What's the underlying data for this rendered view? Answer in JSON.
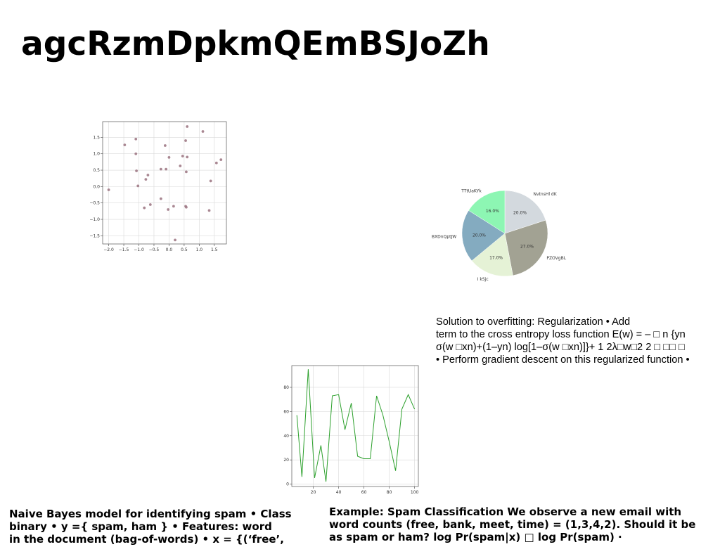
{
  "slide": {
    "title": "agcRzmDpkmQEmBSJoZh"
  },
  "chart_data": [
    {
      "type": "scatter",
      "title": "",
      "xlabel": "",
      "ylabel": "",
      "xlim": [
        -2.2,
        1.9
      ],
      "ylim": [
        -1.75,
        1.98
      ],
      "xticks": [
        "−2.0",
        "−1.5",
        "−1.0",
        "−0.5",
        "0.0",
        "0.5",
        "1.0",
        "1.5"
      ],
      "xtick_values": [
        -2.0,
        -1.5,
        -1.0,
        -0.5,
        0.0,
        0.5,
        1.0,
        1.5
      ],
      "yticks": [
        "−1.5",
        "−1.0",
        "−0.5",
        "0.0",
        "0.5",
        "1.0",
        "1.5"
      ],
      "ytick_values": [
        -1.5,
        -1.0,
        -0.5,
        0.0,
        0.5,
        1.0,
        1.5
      ],
      "grid": true,
      "point_color": "#a07a86",
      "points": [
        [
          0.6,
          1.83
        ],
        [
          1.12,
          1.68
        ],
        [
          -1.1,
          1.45
        ],
        [
          0.55,
          1.4
        ],
        [
          -1.47,
          1.27
        ],
        [
          -0.13,
          1.25
        ],
        [
          -1.1,
          1.0
        ],
        [
          0.45,
          0.93
        ],
        [
          0.6,
          0.9
        ],
        [
          0.0,
          0.89
        ],
        [
          1.72,
          0.82
        ],
        [
          1.57,
          0.72
        ],
        [
          0.37,
          0.63
        ],
        [
          -0.27,
          0.53
        ],
        [
          -0.1,
          0.53
        ],
        [
          -1.08,
          0.48
        ],
        [
          0.57,
          0.45
        ],
        [
          -0.7,
          0.35
        ],
        [
          -0.77,
          0.22
        ],
        [
          1.38,
          0.17
        ],
        [
          -1.03,
          0.02
        ],
        [
          -2.0,
          -0.1
        ],
        [
          -0.27,
          -0.37
        ],
        [
          -0.62,
          -0.55
        ],
        [
          0.15,
          -0.6
        ],
        [
          0.55,
          -0.6
        ],
        [
          0.57,
          -0.63
        ],
        [
          -0.82,
          -0.65
        ],
        [
          -0.03,
          -0.7
        ],
        [
          1.33,
          -0.73
        ],
        [
          0.2,
          -1.63
        ]
      ]
    },
    {
      "type": "pie",
      "title": "",
      "slices": [
        {
          "label": "NvtnsHl dK",
          "value": 20.0,
          "pct": "20.0%",
          "color": "#d3d9de"
        },
        {
          "label": "PZOVgBL",
          "value": 27.0,
          "pct": "27.0%",
          "color": "#a2a293"
        },
        {
          "label": "I kSjc",
          "value": 17.0,
          "pct": "17.0%",
          "color": "#e5f2d6"
        },
        {
          "label": "BXDnQptJW",
          "value": 20.0,
          "pct": "20.0%",
          "color": "#84abc0"
        },
        {
          "label": "TTtUaKYk",
          "value": 16.0,
          "pct": "16.0%",
          "color": "#8df6b3"
        }
      ]
    },
    {
      "type": "line",
      "title": "",
      "xlabel": "",
      "ylabel": "",
      "xlim": [
        3,
        103
      ],
      "ylim": [
        -2,
        98
      ],
      "xticks": [
        "20",
        "40",
        "60",
        "80",
        "100"
      ],
      "xtick_values": [
        20,
        40,
        60,
        80,
        100
      ],
      "yticks": [
        "0",
        "20",
        "40",
        "60",
        "80"
      ],
      "ytick_values": [
        0,
        20,
        40,
        60,
        80
      ],
      "grid": true,
      "line_color": "#2ca02c",
      "series": [
        {
          "x": [
            7,
            11,
            16,
            21,
            26,
            30,
            35,
            40,
            45,
            50,
            55,
            60,
            65,
            70,
            75,
            80,
            85,
            90,
            95,
            100
          ],
          "values": [
            57,
            6,
            95,
            5,
            32,
            2,
            73,
            74,
            45,
            67,
            23,
            21,
            21,
            73,
            57,
            35,
            11,
            62,
            74,
            62
          ]
        }
      ]
    }
  ],
  "solution_text": {
    "lines": [
      "Solution to overfitting: Regularization • Add",
      "term to the cross entropy loss function E(w) = – □ n {yn",
      "σ(w □xn)+(1–yn) log[1–σ(w □xn)]}+ 1 2λ□w□2 2 □ □□ □",
      "• Perform gradient descent on this regularized function •"
    ]
  },
  "naive_bayes_text": {
    "lines": [
      "Naive Bayes model for identifying spam • Class",
      "binary • y ={ spam, ham } • Features: word",
      "in the document (bag-of-words) • x = {(‘free’,"
    ]
  },
  "example_text": {
    "lines": [
      "Example: Spam Classification We observe a new email with",
      "word counts (free, bank, meet, time) = (1,3,4,2). Should it be",
      "as spam or ham? log Pr(spam|x) □ log Pr(spam) ·"
    ]
  }
}
